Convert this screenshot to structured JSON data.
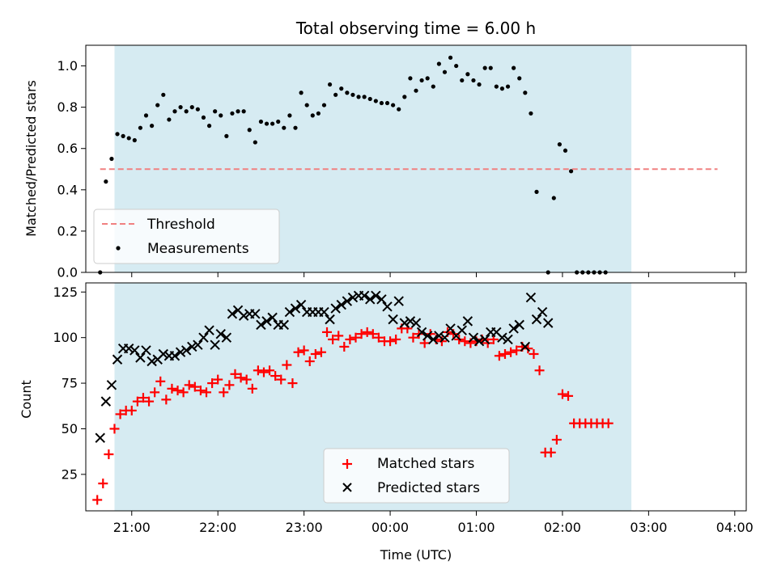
{
  "chart_data": [
    {
      "type": "scatter",
      "title": "Total observing time = 6.00 h",
      "ylabel": "Matched/Predicted stars",
      "xlabel": "",
      "xlim": [
        "20:28",
        "04:08"
      ],
      "ylim": [
        0,
        1.1
      ],
      "yticks": [
        "0.0",
        "0.2",
        "0.4",
        "0.6",
        "0.8",
        "1.0"
      ],
      "shaded_interval": [
        "20:48",
        "02:48"
      ],
      "threshold": {
        "name": "Threshold",
        "value": 0.5,
        "x": [
          "20:38",
          "03:48"
        ],
        "color": "#f08080"
      },
      "series": [
        {
          "name": "Measurements",
          "color": "#000000",
          "points": [
            [
              "20:38",
              0.0
            ],
            [
              "20:42",
              0.44
            ],
            [
              "20:46",
              0.55
            ],
            [
              "20:50",
              0.67
            ],
            [
              "20:54",
              0.66
            ],
            [
              "20:58",
              0.65
            ],
            [
              "21:02",
              0.64
            ],
            [
              "21:06",
              0.7
            ],
            [
              "21:10",
              0.76
            ],
            [
              "21:14",
              0.71
            ],
            [
              "21:18",
              0.81
            ],
            [
              "21:22",
              0.86
            ],
            [
              "21:26",
              0.74
            ],
            [
              "21:30",
              0.78
            ],
            [
              "21:34",
              0.8
            ],
            [
              "21:38",
              0.78
            ],
            [
              "21:42",
              0.8
            ],
            [
              "21:46",
              0.79
            ],
            [
              "21:50",
              0.75
            ],
            [
              "21:54",
              0.71
            ],
            [
              "21:58",
              0.78
            ],
            [
              "22:02",
              0.76
            ],
            [
              "22:06",
              0.66
            ],
            [
              "22:10",
              0.77
            ],
            [
              "22:14",
              0.78
            ],
            [
              "22:18",
              0.78
            ],
            [
              "22:22",
              0.69
            ],
            [
              "22:26",
              0.63
            ],
            [
              "22:30",
              0.73
            ],
            [
              "22:34",
              0.72
            ],
            [
              "22:38",
              0.72
            ],
            [
              "22:42",
              0.73
            ],
            [
              "22:46",
              0.7
            ],
            [
              "22:50",
              0.76
            ],
            [
              "22:54",
              0.7
            ],
            [
              "22:58",
              0.87
            ],
            [
              "23:02",
              0.81
            ],
            [
              "23:06",
              0.76
            ],
            [
              "23:10",
              0.77
            ],
            [
              "23:14",
              0.81
            ],
            [
              "23:18",
              0.91
            ],
            [
              "23:22",
              0.86
            ],
            [
              "23:26",
              0.89
            ],
            [
              "23:30",
              0.87
            ],
            [
              "23:34",
              0.86
            ],
            [
              "23:38",
              0.85
            ],
            [
              "23:42",
              0.85
            ],
            [
              "23:46",
              0.84
            ],
            [
              "23:50",
              0.83
            ],
            [
              "23:54",
              0.82
            ],
            [
              "23:58",
              0.82
            ],
            [
              "00:02",
              0.81
            ],
            [
              "00:06",
              0.79
            ],
            [
              "00:10",
              0.85
            ],
            [
              "00:14",
              0.94
            ],
            [
              "00:18",
              0.88
            ],
            [
              "00:22",
              0.93
            ],
            [
              "00:26",
              0.94
            ],
            [
              "00:30",
              0.9
            ],
            [
              "00:34",
              1.01
            ],
            [
              "00:38",
              0.97
            ],
            [
              "00:42",
              1.04
            ],
            [
              "00:46",
              1.0
            ],
            [
              "00:50",
              0.93
            ],
            [
              "00:54",
              0.96
            ],
            [
              "00:58",
              0.93
            ],
            [
              "01:02",
              0.91
            ],
            [
              "01:06",
              0.99
            ],
            [
              "01:10",
              0.99
            ],
            [
              "01:14",
              0.9
            ],
            [
              "01:18",
              0.89
            ],
            [
              "01:22",
              0.9
            ],
            [
              "01:26",
              0.99
            ],
            [
              "01:30",
              0.94
            ],
            [
              "01:34",
              0.87
            ],
            [
              "01:38",
              0.77
            ],
            [
              "01:42",
              0.39
            ],
            [
              "01:50",
              0.0
            ],
            [
              "01:54",
              0.36
            ],
            [
              "01:58",
              0.62
            ],
            [
              "02:02",
              0.59
            ],
            [
              "02:06",
              0.49
            ],
            [
              "02:10",
              0.0
            ],
            [
              "02:14",
              0.0
            ],
            [
              "02:18",
              0.0
            ],
            [
              "02:22",
              0.0
            ],
            [
              "02:26",
              0.0
            ],
            [
              "02:30",
              0.0
            ]
          ]
        }
      ],
      "legend": {
        "position": "lower left",
        "entries": [
          "Threshold",
          "Measurements"
        ]
      },
      "grid": false
    },
    {
      "type": "scatter",
      "title": "",
      "ylabel": "Count",
      "xlabel": "Time (UTC)",
      "xlim": [
        "20:28",
        "04:08"
      ],
      "ylim": [
        5,
        130
      ],
      "yticks": [
        "25",
        "50",
        "75",
        "100",
        "125"
      ],
      "xticks": [
        "21:00",
        "22:00",
        "23:00",
        "00:00",
        "01:00",
        "02:00",
        "03:00",
        "04:00"
      ],
      "shaded_interval": [
        "20:48",
        "02:48"
      ],
      "series": [
        {
          "name": "Matched stars",
          "marker": "+",
          "color": "#ff0000",
          "points": [
            [
              "20:36",
              11
            ],
            [
              "20:40",
              20
            ],
            [
              "20:44",
              36
            ],
            [
              "20:48",
              50
            ],
            [
              "20:52",
              58
            ],
            [
              "20:56",
              60
            ],
            [
              "21:00",
              60
            ],
            [
              "21:04",
              65
            ],
            [
              "21:08",
              67
            ],
            [
              "21:12",
              65
            ],
            [
              "21:16",
              70
            ],
            [
              "21:20",
              76
            ],
            [
              "21:24",
              66
            ],
            [
              "21:28",
              72
            ],
            [
              "21:32",
              71
            ],
            [
              "21:36",
              70
            ],
            [
              "21:40",
              74
            ],
            [
              "21:44",
              73
            ],
            [
              "21:48",
              71
            ],
            [
              "21:52",
              70
            ],
            [
              "21:56",
              75
            ],
            [
              "22:00",
              77
            ],
            [
              "22:04",
              70
            ],
            [
              "22:08",
              74
            ],
            [
              "22:12",
              80
            ],
            [
              "22:16",
              78
            ],
            [
              "22:20",
              77
            ],
            [
              "22:24",
              72
            ],
            [
              "22:28",
              82
            ],
            [
              "22:32",
              81
            ],
            [
              "22:36",
              82
            ],
            [
              "22:40",
              79
            ],
            [
              "22:44",
              77
            ],
            [
              "22:48",
              85
            ],
            [
              "22:52",
              75
            ],
            [
              "22:56",
              92
            ],
            [
              "23:00",
              93
            ],
            [
              "23:04",
              87
            ],
            [
              "23:08",
              91
            ],
            [
              "23:12",
              92
            ],
            [
              "23:16",
              103
            ],
            [
              "23:20",
              99
            ],
            [
              "23:24",
              101
            ],
            [
              "23:28",
              95
            ],
            [
              "23:32",
              99
            ],
            [
              "23:36",
              100
            ],
            [
              "23:40",
              102
            ],
            [
              "23:44",
              103
            ],
            [
              "23:48",
              102
            ],
            [
              "23:52",
              100
            ],
            [
              "23:56",
              98
            ],
            [
              "00:00",
              98
            ],
            [
              "00:04",
              99
            ],
            [
              "00:08",
              105
            ],
            [
              "00:12",
              105
            ],
            [
              "00:16",
              100
            ],
            [
              "00:20",
              102
            ],
            [
              "00:24",
              97
            ],
            [
              "00:28",
              102
            ],
            [
              "00:32",
              99
            ],
            [
              "00:36",
              98
            ],
            [
              "00:40",
              103
            ],
            [
              "00:44",
              102
            ],
            [
              "00:48",
              99
            ],
            [
              "00:52",
              98
            ],
            [
              "00:56",
              97
            ],
            [
              "01:00",
              98
            ],
            [
              "01:04",
              99
            ],
            [
              "01:08",
              97
            ],
            [
              "01:12",
              99
            ],
            [
              "01:16",
              90
            ],
            [
              "01:20",
              91
            ],
            [
              "01:24",
              92
            ],
            [
              "01:28",
              93
            ],
            [
              "01:32",
              95
            ],
            [
              "01:36",
              94
            ],
            [
              "01:40",
              91
            ],
            [
              "01:44",
              82
            ],
            [
              "01:48",
              37
            ],
            [
              "01:52",
              37
            ],
            [
              "01:56",
              44
            ],
            [
              "02:00",
              69
            ],
            [
              "02:04",
              68
            ],
            [
              "02:08",
              53
            ],
            [
              "02:12",
              53
            ],
            [
              "02:16",
              53
            ],
            [
              "02:20",
              53
            ],
            [
              "02:24",
              53
            ],
            [
              "02:28",
              53
            ],
            [
              "02:32",
              53
            ]
          ]
        },
        {
          "name": "Predicted stars",
          "marker": "x",
          "color": "#000000",
          "points": [
            [
              "20:38",
              45
            ],
            [
              "20:42",
              65
            ],
            [
              "20:46",
              74
            ],
            [
              "20:50",
              88
            ],
            [
              "20:54",
              94
            ],
            [
              "20:58",
              94
            ],
            [
              "21:02",
              93
            ],
            [
              "21:06",
              89
            ],
            [
              "21:10",
              93
            ],
            [
              "21:14",
              87
            ],
            [
              "21:18",
              88
            ],
            [
              "21:22",
              91
            ],
            [
              "21:26",
              90
            ],
            [
              "21:30",
              90
            ],
            [
              "21:34",
              92
            ],
            [
              "21:38",
              93
            ],
            [
              "21:42",
              95
            ],
            [
              "21:46",
              96
            ],
            [
              "21:50",
              100
            ],
            [
              "21:54",
              104
            ],
            [
              "21:58",
              96
            ],
            [
              "22:02",
              102
            ],
            [
              "22:06",
              100
            ],
            [
              "22:10",
              113
            ],
            [
              "22:14",
              115
            ],
            [
              "22:18",
              112
            ],
            [
              "22:22",
              113
            ],
            [
              "22:26",
              113
            ],
            [
              "22:30",
              107
            ],
            [
              "22:34",
              109
            ],
            [
              "22:38",
              111
            ],
            [
              "22:42",
              107
            ],
            [
              "22:46",
              107
            ],
            [
              "22:50",
              114
            ],
            [
              "22:54",
              116
            ],
            [
              "22:58",
              118
            ],
            [
              "23:02",
              114
            ],
            [
              "23:06",
              114
            ],
            [
              "23:10",
              114
            ],
            [
              "23:14",
              114
            ],
            [
              "23:18",
              110
            ],
            [
              "23:22",
              116
            ],
            [
              "23:26",
              118
            ],
            [
              "23:30",
              120
            ],
            [
              "23:34",
              122
            ],
            [
              "23:38",
              123
            ],
            [
              "23:42",
              123
            ],
            [
              "23:46",
              121
            ],
            [
              "23:50",
              123
            ],
            [
              "23:54",
              121
            ],
            [
              "23:58",
              117
            ],
            [
              "00:02",
              110
            ],
            [
              "00:06",
              120
            ],
            [
              "00:10",
              108
            ],
            [
              "00:14",
              109
            ],
            [
              "00:18",
              108
            ],
            [
              "00:22",
              103
            ],
            [
              "00:26",
              101
            ],
            [
              "00:30",
              99
            ],
            [
              "00:34",
              101
            ],
            [
              "00:38",
              100
            ],
            [
              "00:42",
              105
            ],
            [
              "00:46",
              101
            ],
            [
              "00:50",
              104
            ],
            [
              "00:54",
              109
            ],
            [
              "00:58",
              100
            ],
            [
              "01:02",
              98
            ],
            [
              "01:06",
              99
            ],
            [
              "01:10",
              103
            ],
            [
              "01:14",
              103
            ],
            [
              "01:18",
              100
            ],
            [
              "01:22",
              99
            ],
            [
              "01:26",
              105
            ],
            [
              "01:30",
              107
            ],
            [
              "01:34",
              95
            ],
            [
              "01:38",
              122
            ],
            [
              "01:42",
              110
            ],
            [
              "01:46",
              114
            ],
            [
              "01:50",
              108
            ]
          ]
        }
      ],
      "legend": {
        "position": "lower center",
        "entries": [
          "Matched stars",
          "Predicted stars"
        ]
      },
      "grid": false
    }
  ]
}
